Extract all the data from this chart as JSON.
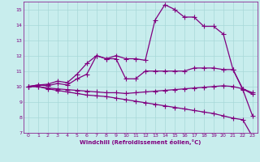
{
  "xlabel": "Windchill (Refroidissement éolien,°C)",
  "ylabel": "",
  "xlim": [
    -0.5,
    23.5
  ],
  "ylim": [
    7,
    15.5
  ],
  "xticks": [
    0,
    1,
    2,
    3,
    4,
    5,
    6,
    7,
    8,
    9,
    10,
    11,
    12,
    13,
    14,
    15,
    16,
    17,
    18,
    19,
    20,
    21,
    22,
    23
  ],
  "yticks": [
    7,
    8,
    9,
    10,
    11,
    12,
    13,
    14,
    15
  ],
  "bg_color": "#c8eded",
  "line_color": "#800080",
  "grid_color": "#a8d8d8",
  "line1_x": [
    0,
    1,
    2,
    3,
    4,
    5,
    6,
    7,
    8,
    9,
    10,
    11,
    12,
    13,
    14,
    15,
    16,
    17,
    18,
    19,
    20,
    21,
    22,
    23
  ],
  "line1_y": [
    10.0,
    10.1,
    10.05,
    10.2,
    10.1,
    10.5,
    10.8,
    12.0,
    11.8,
    12.0,
    11.8,
    11.8,
    11.7,
    14.3,
    15.3,
    15.0,
    14.5,
    14.5,
    13.9,
    13.9,
    13.4,
    11.1,
    9.8,
    8.1
  ],
  "line2_x": [
    0,
    1,
    2,
    3,
    4,
    5,
    6,
    7,
    8,
    9,
    10,
    11,
    12,
    13,
    14,
    15,
    16,
    17,
    18,
    19,
    20,
    21,
    22,
    23
  ],
  "line2_y": [
    10.0,
    10.1,
    10.15,
    10.35,
    10.25,
    10.8,
    11.5,
    12.0,
    11.8,
    11.8,
    10.5,
    10.5,
    11.0,
    11.0,
    11.0,
    11.0,
    11.0,
    11.2,
    11.2,
    11.2,
    11.1,
    11.1,
    9.85,
    9.5
  ],
  "line3_x": [
    0,
    1,
    2,
    3,
    4,
    5,
    6,
    7,
    8,
    9,
    10,
    11,
    12,
    13,
    14,
    15,
    16,
    17,
    18,
    19,
    20,
    21,
    22,
    23
  ],
  "line3_y": [
    10.0,
    10.0,
    9.85,
    9.75,
    9.65,
    9.55,
    9.45,
    9.4,
    9.35,
    9.25,
    9.15,
    9.05,
    8.95,
    8.85,
    8.75,
    8.65,
    8.55,
    8.45,
    8.35,
    8.25,
    8.1,
    7.95,
    7.85,
    6.75
  ],
  "line4_x": [
    0,
    1,
    2,
    3,
    4,
    5,
    6,
    7,
    8,
    9,
    10,
    11,
    12,
    13,
    14,
    15,
    16,
    17,
    18,
    19,
    20,
    21,
    22,
    23
  ],
  "line4_y": [
    10.0,
    10.0,
    9.9,
    9.85,
    9.8,
    9.75,
    9.7,
    9.65,
    9.6,
    9.6,
    9.55,
    9.6,
    9.65,
    9.7,
    9.75,
    9.8,
    9.85,
    9.9,
    9.95,
    10.0,
    10.05,
    10.0,
    9.85,
    9.6
  ]
}
